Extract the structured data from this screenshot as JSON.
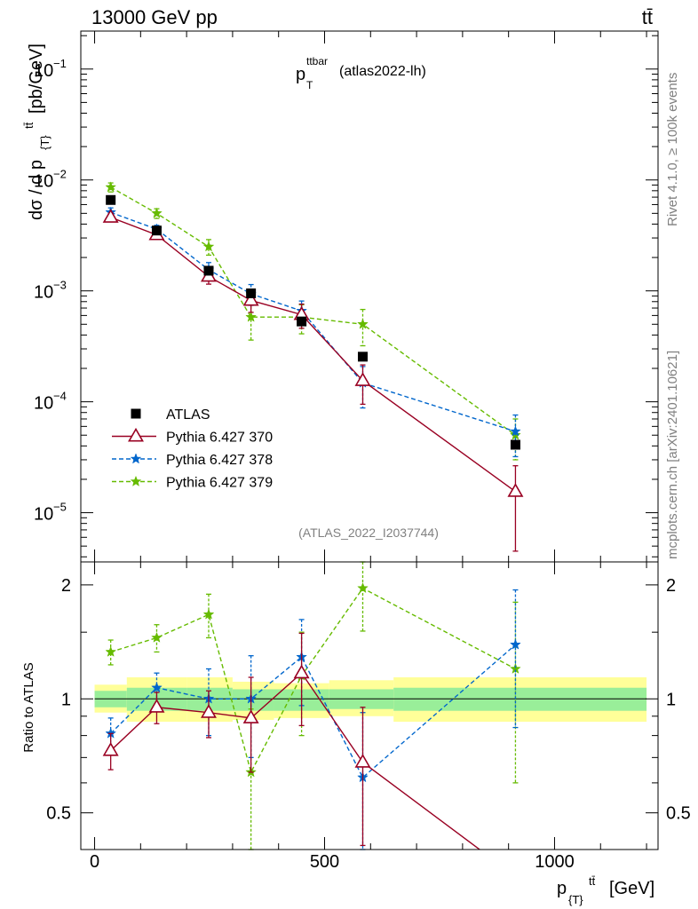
{
  "header": {
    "left": "13000 GeV pp",
    "right": "tt̄"
  },
  "side_labels": {
    "rivet": "Rivet 4.1.0, ≥ 100k events",
    "mcplots": "mcplots.cern.ch [arXiv:2401.10621]"
  },
  "chart_data": {
    "type": "scatter",
    "title_main": "p",
    "title_sup": "ttbar",
    "title_sub": "T",
    "title_suffix": "(atlas2022-lh)",
    "analysis_id": "(ATLAS_2022_I2037744)",
    "ylabel_main": "dσ / d p",
    "ylabel_sub": "{T}",
    "ylabel_sup": "tt̄",
    "ylabel_unit": "[pb/GeV]",
    "xlabel_main": "p",
    "xlabel_sub": "{T}",
    "xlabel_sup": "tt̄",
    "xlabel_unit": "[GeV]",
    "ratio_ylabel": "Ratio to ATLAS",
    "xlim": [
      -30,
      1225
    ],
    "ylim_main": [
      3.6e-06,
      0.22
    ],
    "ylim_ratio": [
      0.4,
      2.3
    ],
    "x_ticks": [
      0,
      500,
      1000
    ],
    "x_tick_labels": [
      "0",
      "500",
      "1000"
    ],
    "y_main_ticks": [
      0.1,
      0.01,
      0.001,
      0.0001,
      1e-05
    ],
    "y_main_tick_labels": [
      {
        "base": "10",
        "exp": "−1"
      },
      {
        "base": "10",
        "exp": "−2"
      },
      {
        "base": "10",
        "exp": "−3"
      },
      {
        "base": "10",
        "exp": "−4"
      },
      {
        "base": "10",
        "exp": "−5"
      }
    ],
    "y_ratio_ticks": [
      0.5,
      1,
      2
    ],
    "y_ratio_tick_labels": [
      "0.5",
      "1",
      "2"
    ],
    "bins_x": [
      35,
      135,
      248,
      340,
      450,
      583,
      915
    ],
    "band_edges": [
      0,
      70,
      200,
      300,
      390,
      510,
      650,
      1200
    ],
    "band_inner": [
      [
        0.95,
        1.05
      ],
      [
        0.93,
        1.07
      ],
      [
        0.93,
        1.07
      ],
      [
        0.93,
        1.06
      ],
      [
        0.93,
        1.06
      ],
      [
        0.94,
        1.06
      ],
      [
        0.93,
        1.07
      ]
    ],
    "band_outer": [
      [
        0.92,
        1.09
      ],
      [
        0.87,
        1.14
      ],
      [
        0.87,
        1.14
      ],
      [
        0.88,
        1.11
      ],
      [
        0.89,
        1.1
      ],
      [
        0.9,
        1.12
      ],
      [
        0.87,
        1.14
      ]
    ],
    "series": [
      {
        "name": "ATLAS",
        "color": "#000000",
        "marker": "square",
        "values": [
          0.0066,
          0.0035,
          0.00152,
          0.00095,
          0.00053,
          0.000255,
          4.1e-05
        ],
        "errors": [
          0,
          0,
          0,
          0,
          0,
          0,
          0
        ],
        "ratio": [
          1,
          1,
          1,
          1,
          1,
          1,
          1
        ],
        "ratio_errors": [
          0,
          0,
          0,
          0,
          0,
          0,
          0
        ]
      },
      {
        "name": "Pythia 6.427 370",
        "color": "#990022",
        "marker": "triangle",
        "dash": "",
        "values": [
          0.0046,
          0.0032,
          0.00135,
          0.00082,
          0.00061,
          0.000155,
          1.55e-05
        ],
        "errors": [
          0.0004,
          0.00025,
          0.0002,
          0.00018,
          0.00015,
          6e-05,
          1.1e-05
        ],
        "ratio": [
          0.73,
          0.95,
          0.92,
          0.89,
          1.17,
          0.68,
          0.34
        ],
        "ratio_errors": [
          0.08,
          0.09,
          0.13,
          0.25,
          0.32,
          0.27,
          0.25
        ]
      },
      {
        "name": "Pythia 6.427 378",
        "color": "#0066cc",
        "marker": "star",
        "dash": "5,3",
        "values": [
          0.0051,
          0.0036,
          0.00155,
          0.00094,
          0.00066,
          0.000148,
          5.4e-05
        ],
        "errors": [
          0.0005,
          0.0003,
          0.00025,
          0.0002,
          0.00015,
          6e-05,
          2.2e-05
        ],
        "ratio": [
          0.81,
          1.07,
          1.0,
          1.0,
          1.29,
          0.62,
          1.39
        ],
        "ratio_errors": [
          0.08,
          0.1,
          0.2,
          0.3,
          0.33,
          0.3,
          0.55
        ]
      },
      {
        "name": "Pythia 6.427 379",
        "color": "#66bb00",
        "marker": "star",
        "dash": "5,3",
        "values": [
          0.0086,
          0.005,
          0.0025,
          0.00058,
          0.00058,
          0.0005,
          5e-05
        ],
        "errors": [
          0.0008,
          0.0005,
          0.0004,
          0.00022,
          0.00017,
          0.00018,
          2e-05
        ],
        "ratio": [
          1.33,
          1.45,
          1.67,
          0.64,
          1.15,
          1.96,
          1.2
        ],
        "ratio_errors": [
          0.1,
          0.12,
          0.22,
          0.3,
          0.35,
          0.45,
          0.6
        ]
      }
    ]
  }
}
